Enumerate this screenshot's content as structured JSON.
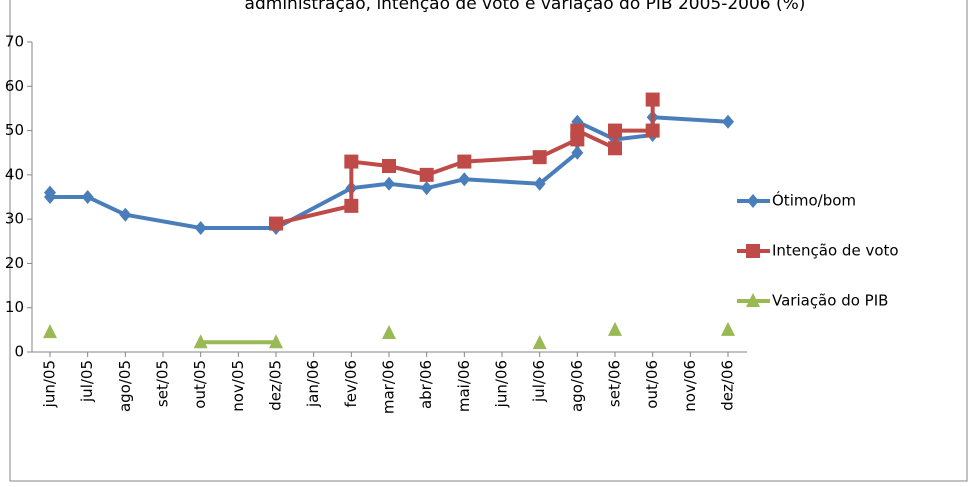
{
  "chart_data": {
    "type": "line",
    "title": "administração, intenção de voto e variação do PIB 2005-2006 (%)",
    "categories": [
      "jun/05",
      "jul/05",
      "ago/05",
      "set/05",
      "out/05",
      "nov/05",
      "dez/05",
      "jan/06",
      "fev/06",
      "mar/06",
      "abr/06",
      "mai/06",
      "jun/06",
      "jul/06",
      "ago/06",
      "set/06",
      "out/06",
      "nov/06",
      "dez/06"
    ],
    "ylim": [
      0,
      70
    ],
    "yticks": [
      0,
      10,
      20,
      30,
      40,
      50,
      60,
      70
    ],
    "grid": false,
    "legend": "right",
    "series": [
      {
        "name": "Ótimo/bom",
        "color": "#4a7ebb",
        "marker": "diamond",
        "x": [
          "jun/05",
          "jun/05",
          "jul/05",
          "ago/05",
          "out/05",
          "dez/05",
          "fev/06",
          "mar/06",
          "abr/06",
          "mai/06",
          "jul/06",
          "ago/06",
          "ago/06",
          "set/06",
          "out/06",
          "out/06",
          "dez/06"
        ],
        "values": [
          36,
          35,
          35,
          31,
          28,
          28,
          37,
          38,
          37,
          39,
          38,
          45,
          52,
          48,
          49,
          53,
          52
        ]
      },
      {
        "name": "Intenção de voto",
        "color": "#be4b48",
        "marker": "square",
        "x": [
          "dez/05",
          "fev/06",
          "fev/06",
          "mar/06",
          "abr/06",
          "mai/06",
          "jul/06",
          "ago/06",
          "ago/06",
          "set/06",
          "set/06",
          "out/06",
          "out/06"
        ],
        "values": [
          29,
          33,
          43,
          42,
          40,
          43,
          44,
          48,
          50,
          46,
          50,
          50,
          57
        ]
      },
      {
        "name": "Variação do PIB",
        "color": "#98b954",
        "marker": "triangle",
        "x": [
          "jun/05",
          null,
          "out/05",
          "dez/05",
          null,
          "mar/06",
          null,
          "jul/06",
          null,
          "set/06",
          null,
          "dez/06"
        ],
        "values": [
          4.5,
          null,
          2.2,
          2.2,
          null,
          4.3,
          null,
          2,
          null,
          5,
          null,
          5
        ]
      }
    ]
  }
}
